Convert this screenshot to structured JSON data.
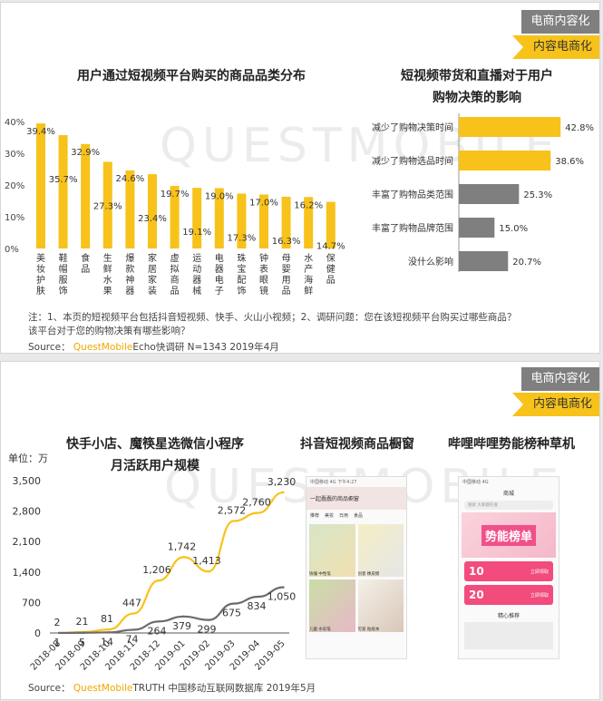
{
  "tags": {
    "grey": "电商内容化",
    "yellow": "内容电商化"
  },
  "watermark": "QUESTMOBILE",
  "panel1": {
    "left_title": "用户通过短视频平台购买的商品品类分布",
    "right_title_line1": "短视频带货和直播对于用户",
    "right_title_line2": "购物决策的影响",
    "note_line1": "注：1、本页的短视频平台包括抖音短视频、快手、火山小视频；2、调研问题：您在该短视频平台购买过哪些商品？",
    "note_line2": "该平台对于您的购物决策有哪些影响？",
    "source_label": "Source：",
    "source_brand": "QuestMobile",
    "source_text": "Echo快调研 N=1343 2019年4月"
  },
  "panel2": {
    "left_title_line1": "快手小店、魔筷星选微信小程序",
    "left_title_line2": "月活跃用户规模",
    "mid_title": "抖音短视频商品橱窗",
    "right_title": "哔哩哔哩势能榜种草机",
    "source_label": "Source：",
    "source_brand": "QuestMobile",
    "source_text": "TRUTH 中国移动互联网数据库 2019年5月",
    "phone1": {
      "status": "中国移动 4G 下午4:27",
      "header": "一起蠢蠢的商品橱窗",
      "tabs": [
        "推荐",
        "美妆",
        "日用",
        "食品"
      ],
      "items": [
        "快懂 中性笔",
        "创意 橡皮擦",
        "儿童 水彩笔",
        "可爱 贴纸本"
      ]
    },
    "phone2": {
      "status": "中国移动 4G",
      "header": "商城",
      "search": "搜索 大家都在搜",
      "banner": "势能榜单",
      "coupon1": "10",
      "coupon2": "20",
      "coupon_text": "立即领取",
      "section": "精心推荐"
    }
  },
  "chart_data": [
    {
      "type": "bar",
      "title": "用户通过短视频平台购买的商品品类分布",
      "categories": [
        "美妆护肤",
        "鞋帽服饰",
        "食品",
        "生鲜水果",
        "爆款神器",
        "家居家装",
        "虚拟商品",
        "运动器械",
        "电器电子",
        "珠宝配饰",
        "钟表眼镜",
        "母婴用品",
        "水产海鲜",
        "保健品"
      ],
      "values": [
        39.4,
        35.7,
        32.9,
        27.3,
        24.6,
        23.4,
        19.7,
        19.1,
        19.0,
        17.3,
        17.0,
        16.3,
        16.2,
        14.7
      ],
      "value_labels": [
        "39.4%",
        "35.7%",
        "32.9%",
        "27.3%",
        "24.6%",
        "23.4%",
        "19.7%",
        "19.1%",
        "19.0%",
        "17.3%",
        "17.0%",
        "16.3%",
        "16.2%",
        "14.7%"
      ],
      "yticks": [
        "0%",
        "10%",
        "20%",
        "30%",
        "40%"
      ],
      "ylim": [
        0,
        40
      ],
      "color": "#f7c21a"
    },
    {
      "type": "bar",
      "orientation": "horizontal",
      "title": "短视频带货和直播对于用户购物决策的影响",
      "categories": [
        "减少了购物决策时间",
        "减少了购物选品时间",
        "丰富了购物品类范围",
        "丰富了购物品牌范围",
        "没什么影响"
      ],
      "values": [
        42.8,
        38.6,
        25.3,
        15.0,
        20.7
      ],
      "value_labels": [
        "42.8%",
        "38.6%",
        "25.3%",
        "15.0%",
        "20.7%"
      ],
      "colors": [
        "#f7c21a",
        "#f7c21a",
        "#7f7f7f",
        "#7f7f7f",
        "#7f7f7f"
      ],
      "xlim": [
        0,
        45
      ]
    },
    {
      "type": "line",
      "title": "快手小店、魔筷星选微信小程序 月活跃用户规模",
      "unit_label": "单位：万",
      "x": [
        "2018-08",
        "2018-09",
        "2018-10",
        "2018-11",
        "2018-12",
        "2019-01",
        "2019-02",
        "2019-03",
        "2019-04",
        "2019-05"
      ],
      "yticks": [
        "0",
        "700",
        "1,400",
        "2,100",
        "2,800",
        "3,500"
      ],
      "ylim": [
        0,
        3500
      ],
      "series": [
        {
          "color": "#f7c21a",
          "values": [
            2,
            21,
            81,
            447,
            1206,
            1742,
            1413,
            2572,
            2760,
            3230
          ],
          "labels": [
            "2",
            "21",
            "81",
            "447",
            "1,206",
            "1,742",
            "1,413",
            "2,572",
            "2,760",
            "3,230"
          ]
        },
        {
          "color": "#6b6b6b",
          "values": [
            1,
            5,
            14,
            74,
            264,
            379,
            299,
            675,
            834,
            1050
          ],
          "labels": [
            "1",
            "5",
            "14",
            "74",
            "264",
            "379",
            "299",
            "675",
            "834",
            "1,050"
          ]
        }
      ]
    }
  ]
}
